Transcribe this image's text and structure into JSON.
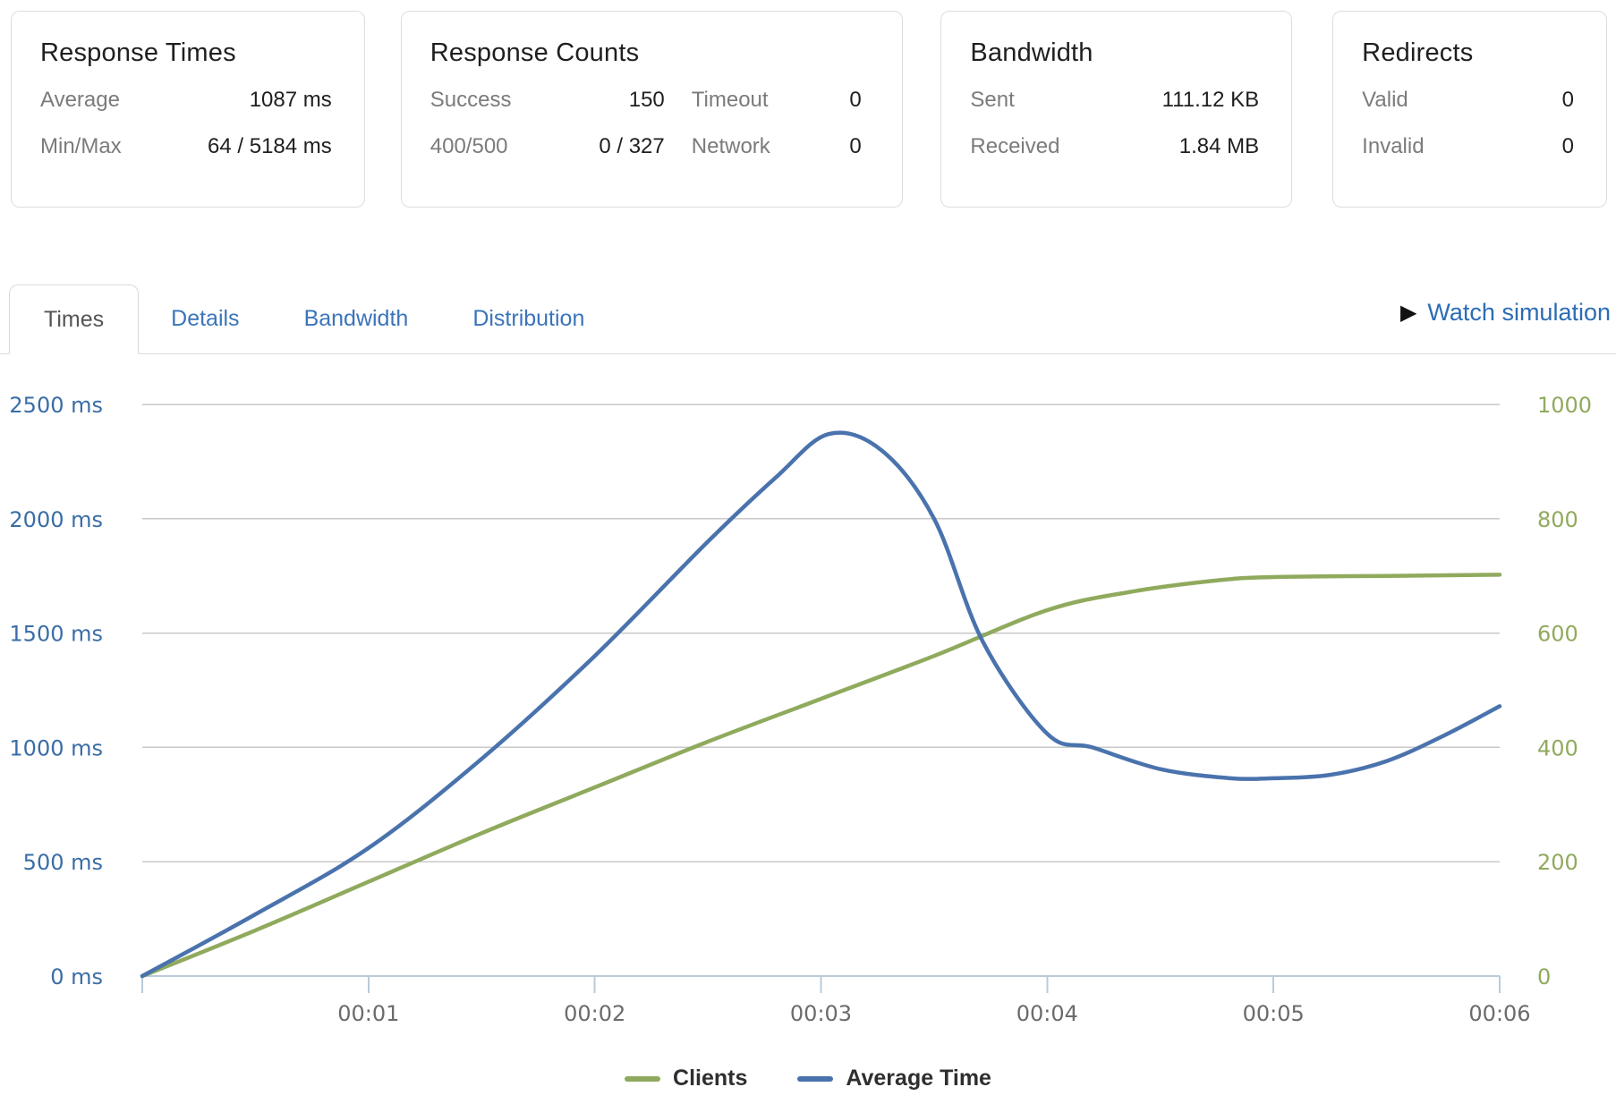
{
  "cards": {
    "response_times": {
      "title": "Response Times",
      "rows": [
        {
          "label": "Average",
          "value": "1087 ms"
        },
        {
          "label": "Min/Max",
          "value": "64 / 5184 ms"
        }
      ]
    },
    "response_counts": {
      "title": "Response Counts",
      "left_rows": [
        {
          "label": "Success",
          "value": "150"
        },
        {
          "label": "400/500",
          "value": "0 / 327"
        }
      ],
      "right_rows": [
        {
          "label": "Timeout",
          "value": "0"
        },
        {
          "label": "Network",
          "value": "0"
        }
      ]
    },
    "bandwidth": {
      "title": "Bandwidth",
      "rows": [
        {
          "label": "Sent",
          "value": "111.12 KB"
        },
        {
          "label": "Received",
          "value": "1.84 MB"
        }
      ]
    },
    "redirects": {
      "title": "Redirects",
      "rows": [
        {
          "label": "Valid",
          "value": "0"
        },
        {
          "label": "Invalid",
          "value": "0"
        }
      ]
    }
  },
  "tabs": {
    "active": "Times",
    "items": [
      {
        "label": "Times"
      },
      {
        "label": "Details"
      },
      {
        "label": "Bandwidth"
      },
      {
        "label": "Distribution"
      }
    ],
    "watch_simulation": {
      "icon": "play-icon",
      "glyph": "▶",
      "label": "Watch simulation"
    }
  },
  "chart_data": {
    "type": "line",
    "title": "",
    "grid": true,
    "legend_position": "bottom",
    "x_axis": {
      "unit": "mm:ss",
      "min_seconds": 0,
      "max_seconds": 360,
      "ticks": [
        {
          "label": "",
          "value": 0
        },
        {
          "label": "00:01",
          "value": 60
        },
        {
          "label": "00:02",
          "value": 120
        },
        {
          "label": "00:03",
          "value": 180
        },
        {
          "label": "00:04",
          "value": 240
        },
        {
          "label": "00:05",
          "value": 300
        },
        {
          "label": "00:06",
          "value": 360
        }
      ]
    },
    "left_axis": {
      "title": "response time",
      "min": 0,
      "max": 2500,
      "color": "#3a6da6",
      "ticks": [
        {
          "label": "2500 ms",
          "value": 2500
        },
        {
          "label": "2000 ms",
          "value": 2000
        },
        {
          "label": "1500 ms",
          "value": 1500
        },
        {
          "label": "1000 ms",
          "value": 1000
        },
        {
          "label": "500 ms",
          "value": 500
        },
        {
          "label": "0 ms",
          "value": 0
        }
      ]
    },
    "right_axis": {
      "title": "clients",
      "min": 0,
      "max": 1000,
      "color": "#90aa5d",
      "ticks": [
        {
          "label": "1000",
          "value": 1000
        },
        {
          "label": "800",
          "value": 800
        },
        {
          "label": "600",
          "value": 600
        },
        {
          "label": "400",
          "value": 400
        },
        {
          "label": "200",
          "value": 200
        },
        {
          "label": "0",
          "value": 0
        }
      ]
    },
    "series": [
      {
        "name": "Clients",
        "axis": "right",
        "color": "#90aa5d",
        "x": [
          0,
          30,
          60,
          90,
          120,
          150,
          180,
          210,
          240,
          262,
          285,
          300,
          330,
          360
        ],
        "values": [
          0,
          80,
          165,
          250,
          330,
          410,
          485,
          560,
          640,
          672,
          692,
          698,
          700,
          702
        ]
      },
      {
        "name": "Average Time",
        "axis": "left",
        "color": "#4a73ad",
        "x": [
          0,
          30,
          60,
          90,
          120,
          150,
          168,
          182,
          196,
          210,
          223,
          240,
          252,
          270,
          288,
          300,
          315,
          330,
          345,
          360
        ],
        "values": [
          0,
          270,
          560,
          950,
          1400,
          1900,
          2180,
          2370,
          2300,
          2000,
          1460,
          1060,
          1000,
          905,
          866,
          865,
          880,
          940,
          1050,
          1180
        ]
      }
    ],
    "legend": [
      {
        "label": "Clients",
        "color": "#90aa5d"
      },
      {
        "label": "Average Time",
        "color": "#4a73ad"
      }
    ],
    "colors": {
      "gridline": "#c9c9c9",
      "baseline": "#b9cbd9",
      "x_label": "#6b6b6b"
    }
  }
}
